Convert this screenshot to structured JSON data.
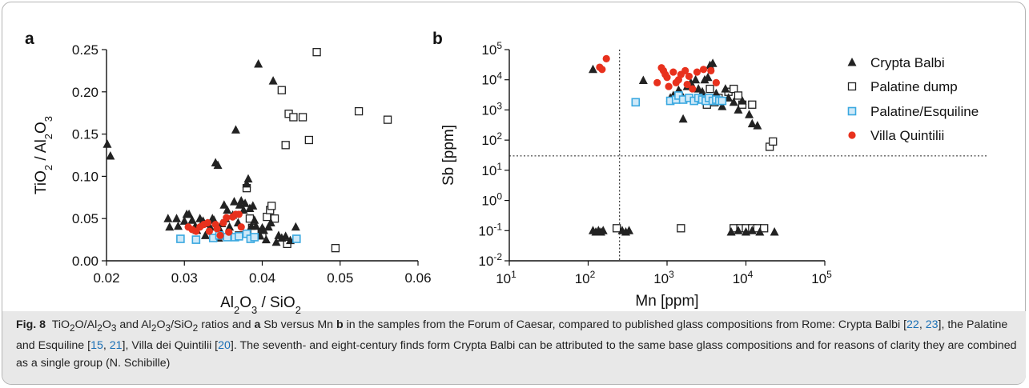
{
  "panels": {
    "a": {
      "label": "a",
      "xlabel_parts": [
        {
          "t": "Al",
          "s": "n"
        },
        {
          "t": "2",
          "s": "sub"
        },
        {
          "t": "O",
          "s": "n"
        },
        {
          "t": "3",
          "s": "sub"
        },
        {
          "t": " / SiO",
          "s": "n"
        },
        {
          "t": "2",
          "s": "sub"
        }
      ],
      "ylabel_parts": [
        {
          "t": "TiO",
          "s": "n"
        },
        {
          "t": "2",
          "s": "sub"
        },
        {
          "t": " / Al",
          "s": "n"
        },
        {
          "t": "2",
          "s": "sub"
        },
        {
          "t": "O",
          "s": "n"
        },
        {
          "t": "3",
          "s": "sub"
        }
      ]
    },
    "b": {
      "label": "b",
      "xlabel": "Mn [ppm]",
      "ylabel": "Sb [ppm]"
    }
  },
  "legend": [
    {
      "name": "Crypta Balbi",
      "marker": "triangle",
      "color": "#222222"
    },
    {
      "name": "Palatine dump",
      "marker": "open-square",
      "color": "#222222"
    },
    {
      "name": "Palatine/Esquiline",
      "marker": "square",
      "color": "#3aa8e0"
    },
    {
      "name": "Villa Quintilii",
      "marker": "circle",
      "color": "#e8311d"
    }
  ],
  "caption": {
    "fig_label": "Fig. 8",
    "text_html": "TiO<sub>2</sub>O/Al<sub>2</sub>O<sub>3</sub> and Al<sub>2</sub>O<sub>3</sub>/SiO<sub>2</sub> ratios and <b>a</b> Sb versus Mn <b>b</b> in the samples from the Forum of Caesar, compared to published glass compositions from Rome: Crypta Balbi [<span class=\"refs\">22</span>, <span class=\"refs\">23</span>], the Palatine and Esquiline [<span class=\"refs\">15</span>, <span class=\"refs\">21</span>], Villa dei Quintilii [<span class=\"refs\">20</span>]. The seventh- and eight-century finds form Crypta Balbi can be attributed to the same base glass compositions and for reasons of clarity they are combined as a single group (N. Schibille)"
  },
  "chart_data": [
    {
      "type": "scatter",
      "title": "",
      "xlabel": "Al2O3 / SiO2",
      "ylabel": "TiO2 / Al2O3",
      "xlim": [
        0.02,
        0.06
      ],
      "ylim": [
        0.0,
        0.25
      ],
      "xticks": [
        "0.02",
        "0.03",
        "0.04",
        "0.05",
        "0.06"
      ],
      "yticks": [
        "0.00",
        "0.05",
        "0.10",
        "0.15",
        "0.20",
        "0.25"
      ],
      "grid": false,
      "series": [
        {
          "name": "Crypta Balbi",
          "points": [
            [
              0.0201,
              0.138
            ],
            [
              0.0205,
              0.124
            ],
            [
              0.0279,
              0.05
            ],
            [
              0.0281,
              0.04
            ],
            [
              0.029,
              0.05
            ],
            [
              0.0292,
              0.041
            ],
            [
              0.03,
              0.047
            ],
            [
              0.0303,
              0.055
            ],
            [
              0.0306,
              0.055
            ],
            [
              0.031,
              0.048
            ],
            [
              0.0314,
              0.041
            ],
            [
              0.0316,
              0.036
            ],
            [
              0.032,
              0.05
            ],
            [
              0.0324,
              0.047
            ],
            [
              0.0327,
              0.03
            ],
            [
              0.033,
              0.044
            ],
            [
              0.0333,
              0.04
            ],
            [
              0.0336,
              0.05
            ],
            [
              0.0338,
              0.048
            ],
            [
              0.034,
              0.116
            ],
            [
              0.0343,
              0.113
            ],
            [
              0.0344,
              0.027
            ],
            [
              0.0346,
              0.036
            ],
            [
              0.0348,
              0.044
            ],
            [
              0.0351,
              0.066
            ],
            [
              0.0353,
              0.05
            ],
            [
              0.0355,
              0.06
            ],
            [
              0.0358,
              0.04
            ],
            [
              0.036,
              0.031
            ],
            [
              0.0362,
              0.054
            ],
            [
              0.0364,
              0.07
            ],
            [
              0.0366,
              0.155
            ],
            [
              0.0369,
              0.045
            ],
            [
              0.0371,
              0.066
            ],
            [
              0.0373,
              0.071
            ],
            [
              0.0376,
              0.06
            ],
            [
              0.0378,
              0.068
            ],
            [
              0.038,
              0.091
            ],
            [
              0.0382,
              0.097
            ],
            [
              0.0384,
              0.062
            ],
            [
              0.0386,
              0.041
            ],
            [
              0.0388,
              0.065
            ],
            [
              0.039,
              0.048
            ],
            [
              0.0392,
              0.041
            ],
            [
              0.0395,
              0.233
            ],
            [
              0.0397,
              0.03
            ],
            [
              0.04,
              0.039
            ],
            [
              0.0402,
              0.036
            ],
            [
              0.0405,
              0.025
            ],
            [
              0.0408,
              0.04
            ],
            [
              0.0411,
              0.045
            ],
            [
              0.0414,
              0.213
            ],
            [
              0.0418,
              0.022
            ],
            [
              0.0421,
              0.03
            ],
            [
              0.0425,
              0.027
            ],
            [
              0.043,
              0.029
            ],
            [
              0.0436,
              0.024
            ],
            [
              0.0443,
              0.04
            ]
          ]
        },
        {
          "name": "Palatine dump",
          "points": [
            [
              0.037,
              0.03
            ],
            [
              0.038,
              0.086
            ],
            [
              0.0384,
              0.05
            ],
            [
              0.0387,
              0.039
            ],
            [
              0.039,
              0.034
            ],
            [
              0.04,
              0.03
            ],
            [
              0.0406,
              0.052
            ],
            [
              0.041,
              0.06
            ],
            [
              0.0412,
              0.065
            ],
            [
              0.0416,
              0.05
            ],
            [
              0.0425,
              0.202
            ],
            [
              0.043,
              0.137
            ],
            [
              0.0432,
              0.02
            ],
            [
              0.0434,
              0.174
            ],
            [
              0.044,
              0.17
            ],
            [
              0.0452,
              0.17
            ],
            [
              0.046,
              0.143
            ],
            [
              0.047,
              0.247
            ],
            [
              0.0494,
              0.015
            ],
            [
              0.0524,
              0.177
            ],
            [
              0.0561,
              0.167
            ]
          ]
        },
        {
          "name": "Palatine/Esquiline",
          "points": [
            [
              0.0295,
              0.026
            ],
            [
              0.0315,
              0.025
            ],
            [
              0.0337,
              0.027
            ],
            [
              0.0345,
              0.03
            ],
            [
              0.0355,
              0.028
            ],
            [
              0.0365,
              0.028
            ],
            [
              0.037,
              0.029
            ],
            [
              0.038,
              0.032
            ],
            [
              0.0385,
              0.026
            ],
            [
              0.039,
              0.028
            ],
            [
              0.0444,
              0.026
            ]
          ]
        },
        {
          "name": "Villa Quintilii",
          "points": [
            [
              0.0305,
              0.04
            ],
            [
              0.031,
              0.037
            ],
            [
              0.0315,
              0.035
            ],
            [
              0.032,
              0.04
            ],
            [
              0.0325,
              0.043
            ],
            [
              0.033,
              0.045
            ],
            [
              0.0332,
              0.035
            ],
            [
              0.034,
              0.043
            ],
            [
              0.0342,
              0.038
            ],
            [
              0.0346,
              0.03
            ],
            [
              0.035,
              0.045
            ],
            [
              0.0354,
              0.051
            ],
            [
              0.0357,
              0.034
            ],
            [
              0.0362,
              0.052
            ],
            [
              0.0366,
              0.055
            ],
            [
              0.037,
              0.055
            ],
            [
              0.0373,
              0.04
            ]
          ]
        }
      ]
    },
    {
      "type": "scatter",
      "title": "",
      "xlabel": "Mn [ppm]",
      "ylabel": "Sb [ppm]",
      "xscale": "log",
      "yscale": "log",
      "xlim": [
        10,
        100000
      ],
      "ylim": [
        0.01,
        100000
      ],
      "grid": false,
      "reference_lines": {
        "x": 250,
        "y": 30
      },
      "series": [
        {
          "name": "Crypta Balbi",
          "points": [
            [
              115,
              22000
            ],
            [
              500,
              9500
            ],
            [
              1100,
              2500
            ],
            [
              1200,
              3000
            ],
            [
              1400,
              4500
            ],
            [
              1500,
              3500
            ],
            [
              1600,
              500
            ],
            [
              1800,
              6000
            ],
            [
              2000,
              8000
            ],
            [
              2300,
              10000
            ],
            [
              2500,
              5000
            ],
            [
              2800,
              4000
            ],
            [
              3000,
              10000
            ],
            [
              3300,
              12000
            ],
            [
              3500,
              30000
            ],
            [
              3800,
              35000
            ],
            [
              4200,
              3500
            ],
            [
              4500,
              2500
            ],
            [
              5000,
              1300
            ],
            [
              5500,
              5000
            ],
            [
              6000,
              2500
            ],
            [
              7000,
              1800
            ],
            [
              8000,
              1000
            ],
            [
              9000,
              2000
            ],
            [
              11000,
              700
            ],
            [
              12000,
              350
            ],
            [
              14000,
              300
            ],
            [
              115,
              0.1
            ],
            [
              125,
              0.09
            ],
            [
              135,
              0.1
            ],
            [
              145,
              0.09
            ],
            [
              155,
              0.1
            ],
            [
              270,
              0.1
            ],
            [
              300,
              0.09
            ],
            [
              330,
              0.1
            ],
            [
              6500,
              0.09
            ],
            [
              8000,
              0.1
            ],
            [
              10000,
              0.09
            ],
            [
              12000,
              0.1
            ],
            [
              15000,
              0.09
            ],
            [
              23000,
              0.09
            ]
          ]
        },
        {
          "name": "Palatine dump",
          "points": [
            [
              3500,
              5000
            ],
            [
              3200,
              1500
            ],
            [
              3800,
              2000
            ],
            [
              4000,
              1800
            ],
            [
              4500,
              2500
            ],
            [
              6000,
              4000
            ],
            [
              7000,
              5000
            ],
            [
              8000,
              3000
            ],
            [
              9000,
              1500
            ],
            [
              12000,
              1500
            ],
            [
              20000,
              60
            ],
            [
              22000,
              90
            ],
            [
              230,
              0.12
            ],
            [
              1500,
              0.12
            ],
            [
              7000,
              0.12
            ],
            [
              8500,
              0.12
            ],
            [
              10000,
              0.12
            ],
            [
              12000,
              0.12
            ],
            [
              14000,
              0.12
            ],
            [
              17000,
              0.12
            ]
          ]
        },
        {
          "name": "Palatine/Esquiline",
          "points": [
            [
              400,
              1800
            ],
            [
              1100,
              2000
            ],
            [
              1300,
              2200
            ],
            [
              1400,
              3000
            ],
            [
              1600,
              2200
            ],
            [
              1900,
              2500
            ],
            [
              2200,
              2000
            ],
            [
              2500,
              2500
            ],
            [
              2800,
              2200
            ],
            [
              3100,
              2000
            ],
            [
              3400,
              2500
            ],
            [
              3800,
              2000
            ],
            [
              4200,
              2200
            ],
            [
              4600,
              2000
            ],
            [
              5000,
              2000
            ]
          ]
        },
        {
          "name": "Villa Quintilii",
          "points": [
            [
              140,
              26000
            ],
            [
              150,
              22000
            ],
            [
              170,
              50000
            ],
            [
              750,
              8000
            ],
            [
              850,
              25000
            ],
            [
              900,
              20000
            ],
            [
              950,
              15000
            ],
            [
              1000,
              12000
            ],
            [
              1050,
              6000
            ],
            [
              1200,
              18000
            ],
            [
              1300,
              8000
            ],
            [
              1400,
              10000
            ],
            [
              1500,
              15000
            ],
            [
              1700,
              20000
            ],
            [
              1800,
              7000
            ],
            [
              1900,
              13000
            ],
            [
              2100,
              5000
            ],
            [
              2400,
              18000
            ],
            [
              2900,
              22000
            ],
            [
              3600,
              20000
            ],
            [
              4200,
              8000
            ]
          ]
        }
      ]
    }
  ]
}
